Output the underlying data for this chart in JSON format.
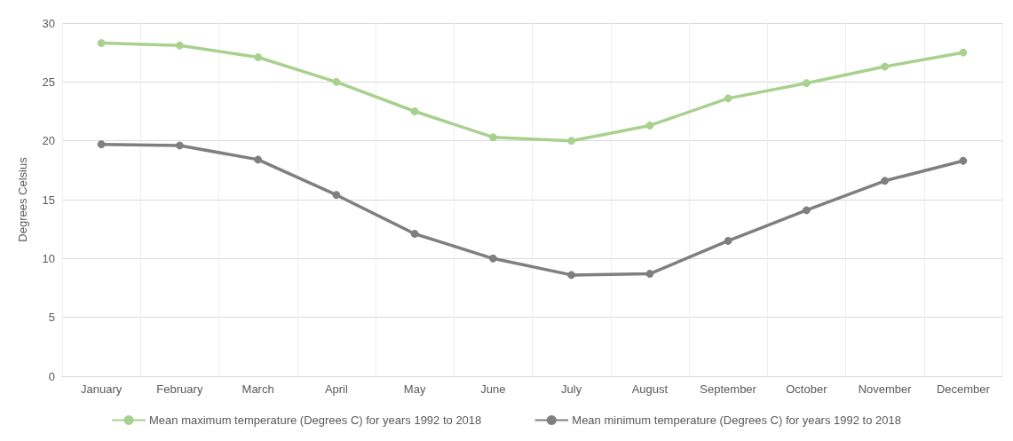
{
  "chart_data": {
    "type": "line",
    "ylabel": "Degrees Celsius",
    "categories": [
      "January",
      "February",
      "March",
      "April",
      "May",
      "June",
      "July",
      "August",
      "September",
      "October",
      "November",
      "December"
    ],
    "series": [
      {
        "name": "Mean maximum temperature (Degrees C) for years 1992 to 2018",
        "color": "#a9d18e",
        "values": [
          28.3,
          28.1,
          27.1,
          25.0,
          22.5,
          20.3,
          20.0,
          21.3,
          23.6,
          24.9,
          26.3,
          27.5
        ]
      },
      {
        "name": "Mean minimum temperature (Degrees C) for years 1992 to 2018",
        "color": "#7f7f7f",
        "values": [
          19.7,
          19.6,
          18.4,
          15.4,
          12.1,
          10.0,
          8.6,
          8.7,
          11.5,
          14.1,
          16.6,
          18.3
        ]
      }
    ],
    "ylim": [
      0,
      30
    ],
    "yticks": [
      0,
      5,
      10,
      15,
      20,
      25,
      30
    ],
    "grid": true,
    "legend": "bottom",
    "marker": "circle",
    "line_style": "solid"
  }
}
